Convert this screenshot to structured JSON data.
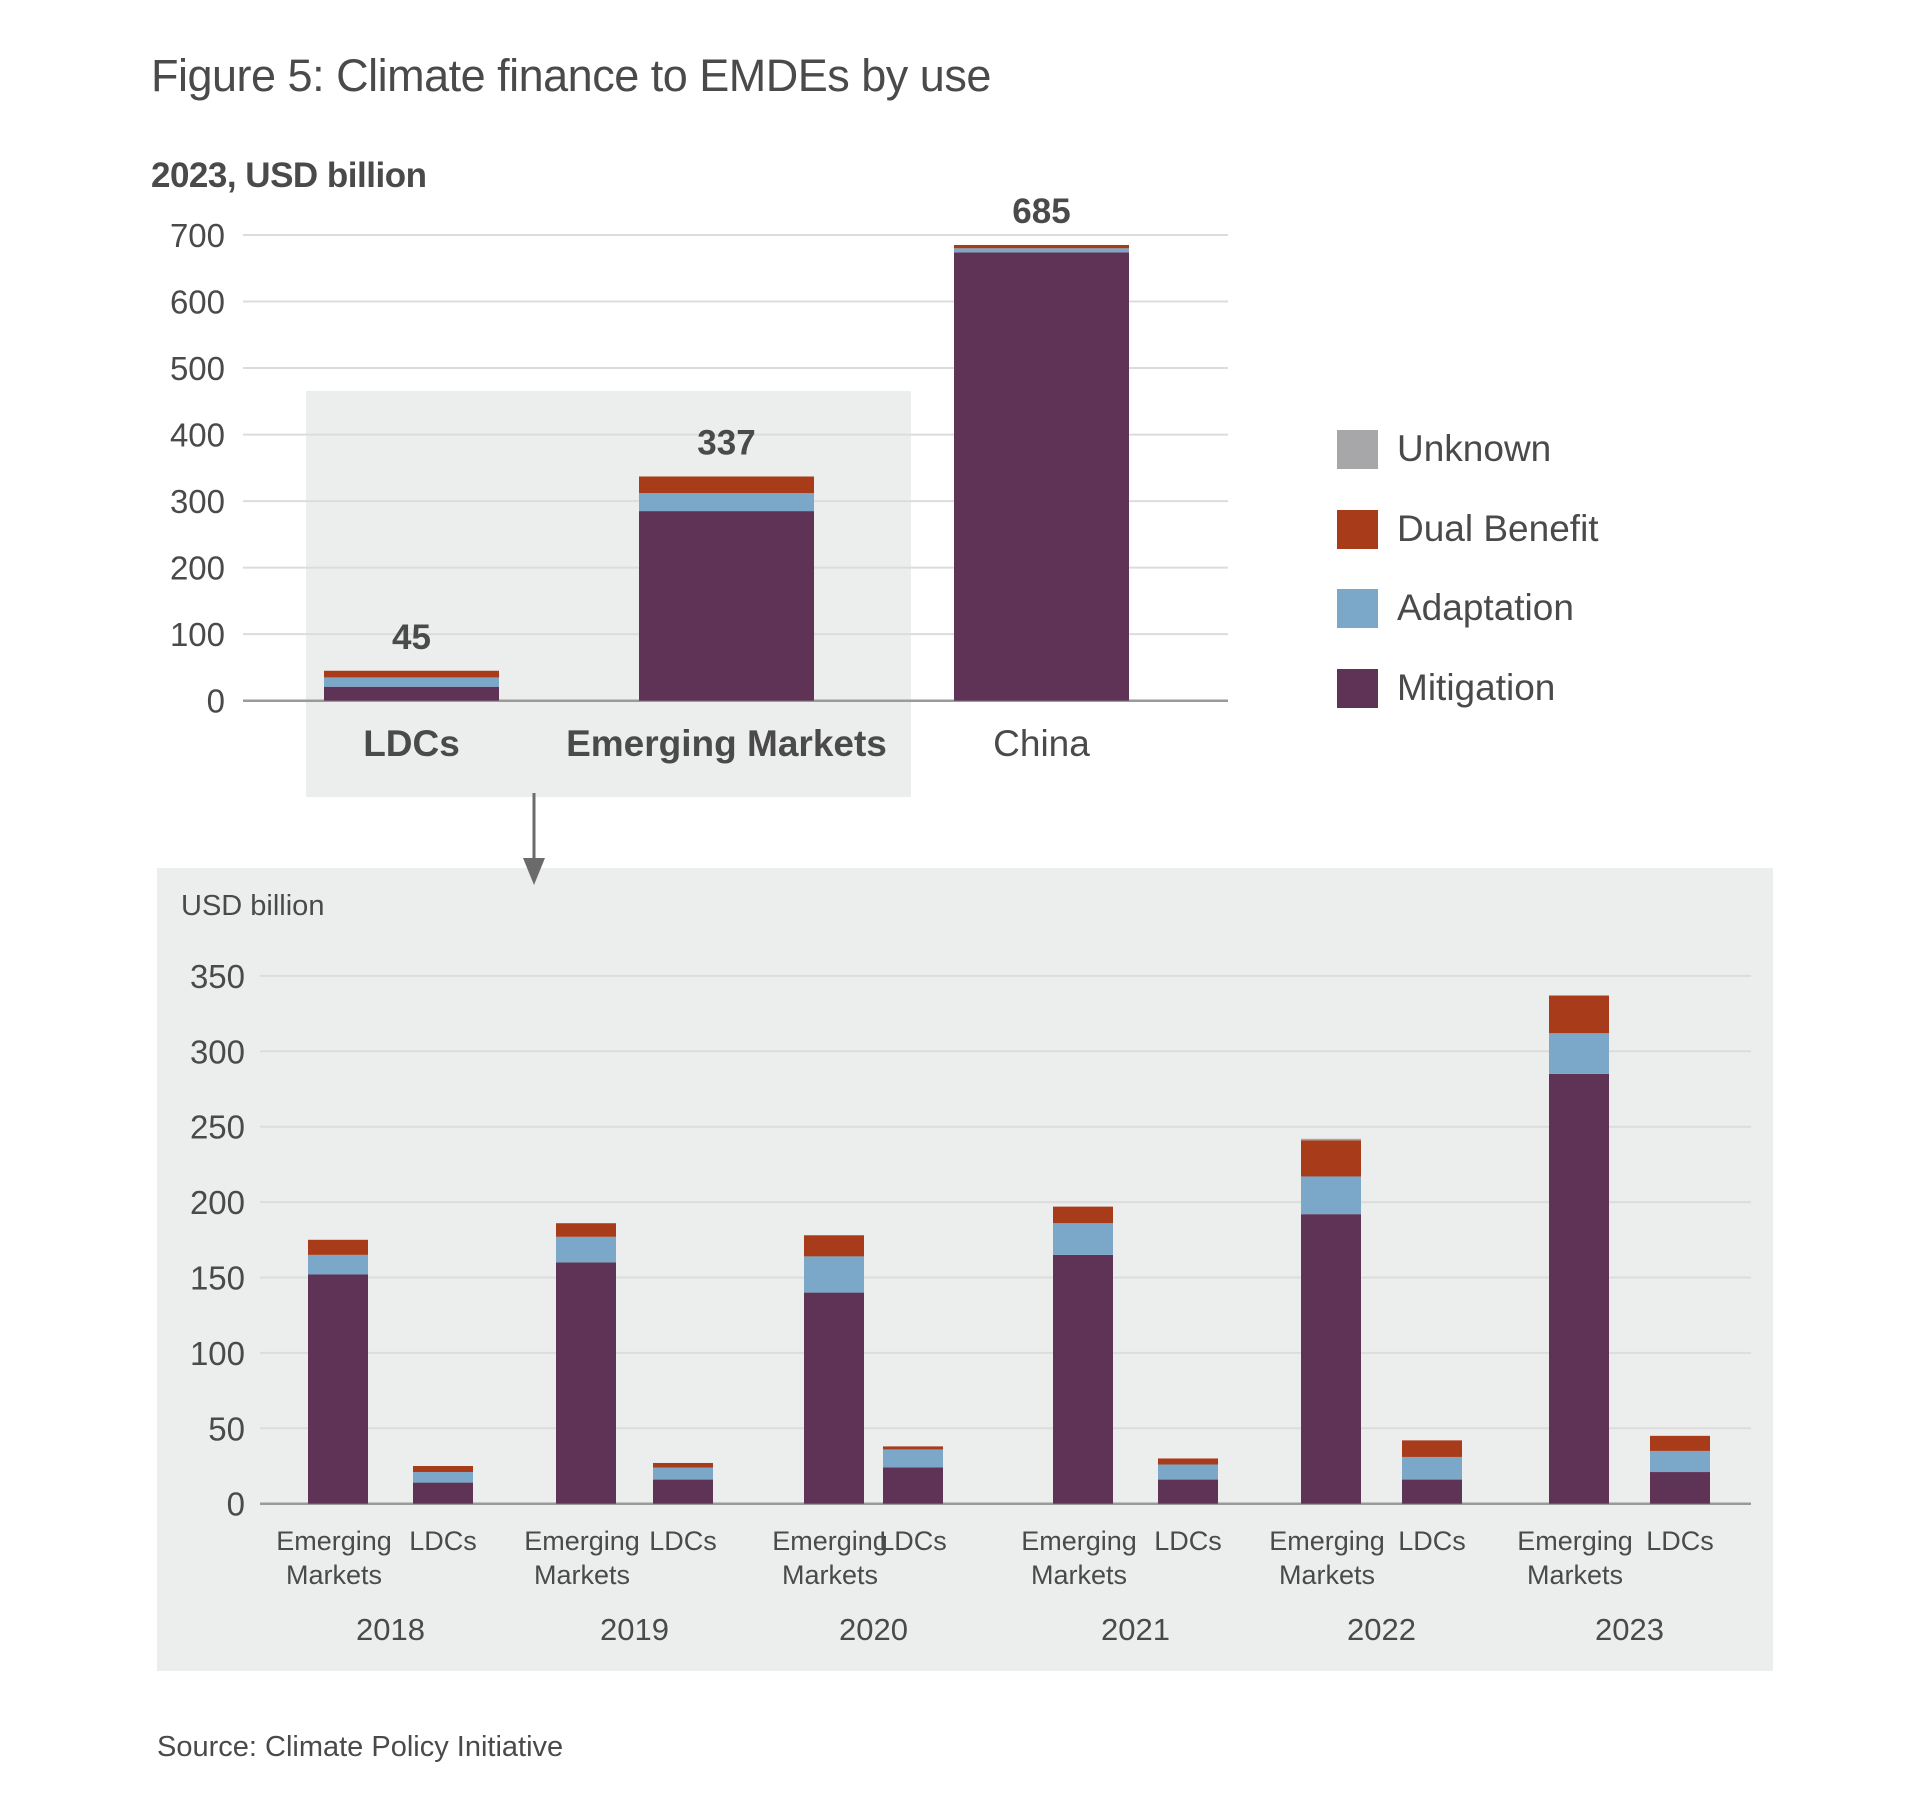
{
  "title": "Figure 5: Climate finance to EMDEs by use",
  "source": "Source: Climate Policy Initiative",
  "colors": {
    "Unknown": "#a7a7a9",
    "Dual Benefit": "#a83c1a",
    "Adaptation": "#7ba8c8",
    "Mitigation": "#5f3356",
    "text": "#4a4a4a",
    "grid": "#dcdcdc",
    "axis": "#9a9a9a",
    "panel": "#eceeed"
  },
  "legend": [
    {
      "label": "Unknown",
      "color": "#a7a7a9"
    },
    {
      "label": "Dual Benefit",
      "color": "#a83c1a"
    },
    {
      "label": "Adaptation",
      "color": "#7ba8c8"
    },
    {
      "label": "Mitigation",
      "color": "#5f3356"
    }
  ],
  "chart_data": [
    {
      "type": "bar",
      "stacked": true,
      "title": "2023, USD billion",
      "xlabel": "",
      "ylabel": "",
      "ylim": [
        0,
        700
      ],
      "yticks": [
        0,
        100,
        200,
        300,
        400,
        500,
        600,
        700
      ],
      "grid": true,
      "legend_position": "right",
      "categories": [
        "LDCs",
        "Emerging Markets",
        "China"
      ],
      "category_bold": [
        true,
        true,
        false
      ],
      "highlighted_categories": [
        "LDCs",
        "Emerging Markets"
      ],
      "totals": [
        45,
        337,
        685
      ],
      "total_labels": [
        "45",
        "337",
        "685"
      ],
      "series": [
        {
          "name": "Mitigation",
          "values": [
            21,
            285,
            674
          ]
        },
        {
          "name": "Adaptation",
          "values": [
            14,
            27,
            6
          ]
        },
        {
          "name": "Dual Benefit",
          "values": [
            10,
            25,
            5
          ]
        },
        {
          "name": "Unknown",
          "values": [
            0,
            0,
            0
          ]
        }
      ]
    },
    {
      "type": "bar",
      "stacked": true,
      "title": "USD billion",
      "xlabel": "",
      "ylabel": "",
      "ylim": [
        0,
        350
      ],
      "yticks": [
        0,
        50,
        100,
        150,
        200,
        250,
        300,
        350
      ],
      "grid": true,
      "groups": [
        "2018",
        "2019",
        "2020",
        "2021",
        "2022",
        "2023"
      ],
      "subcategories": [
        [
          "Emerging",
          "Markets"
        ],
        [
          "LDCs"
        ]
      ],
      "categories": [
        "2018 Emerging Markets",
        "2018 LDCs",
        "2019 Emerging Markets",
        "2019 LDCs",
        "2020 Emerging Markets",
        "2020 LDCs",
        "2021 Emerging Markets",
        "2021 LDCs",
        "2022 Emerging Markets",
        "2022 LDCs",
        "2023 Emerging Markets",
        "2023 LDCs"
      ],
      "series": [
        {
          "name": "Mitigation",
          "values": [
            152,
            14,
            160,
            16,
            140,
            24,
            165,
            16,
            192,
            16,
            285,
            21
          ]
        },
        {
          "name": "Adaptation",
          "values": [
            13,
            7,
            17,
            8,
            24,
            12,
            21,
            10,
            25,
            15,
            27,
            14
          ]
        },
        {
          "name": "Dual Benefit",
          "values": [
            10,
            4,
            9,
            3,
            14,
            2,
            11,
            4,
            24,
            11,
            25,
            10
          ]
        },
        {
          "name": "Unknown",
          "values": [
            0,
            0,
            0,
            0,
            0,
            0,
            0,
            0,
            1,
            0,
            0,
            0
          ]
        }
      ]
    }
  ]
}
